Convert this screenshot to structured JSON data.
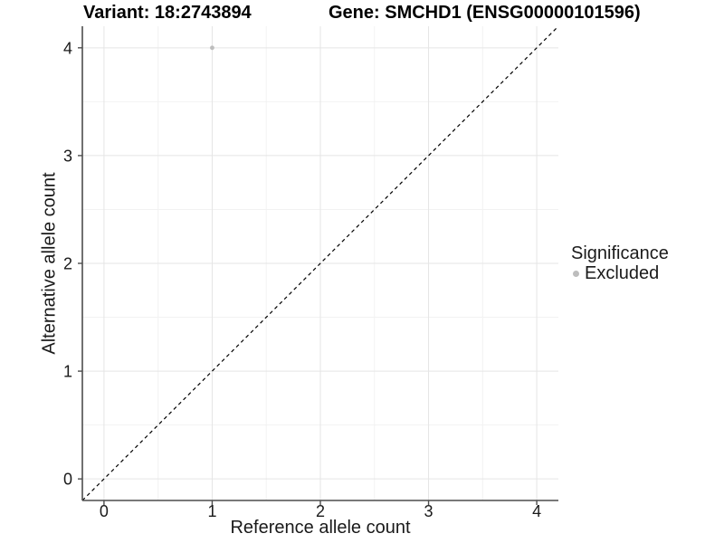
{
  "chart_data": {
    "type": "scatter",
    "title_left": "Variant: 18:2743894",
    "title_right": "Gene: SMCHD1 (ENSG00000101596)",
    "xlabel": "Reference allele count",
    "ylabel": "Alternative allele count",
    "xlim": [
      -0.2,
      4.2
    ],
    "ylim": [
      -0.2,
      4.2
    ],
    "x_ticks": [
      0,
      1,
      2,
      3,
      4
    ],
    "y_ticks": [
      0,
      1,
      2,
      3,
      4
    ],
    "x_minor_ticks": [
      0.5,
      1.5,
      2.5,
      3.5
    ],
    "y_minor_ticks": [
      0.5,
      1.5,
      2.5,
      3.5
    ],
    "grid": true,
    "legend_position": "right",
    "reference_line": {
      "kind": "identity",
      "slope": 1,
      "intercept": 0,
      "style": "dashed",
      "color": "#000000"
    },
    "series": [
      {
        "name": "Excluded",
        "color": "#bdbdbd",
        "points": [
          {
            "x": 1,
            "y": 4
          }
        ]
      }
    ],
    "legend": {
      "title": "Significance",
      "items": [
        {
          "label": "Excluded",
          "color": "#bdbdbd"
        }
      ]
    },
    "colors": {
      "background": "#ffffff",
      "grid_major": "#e5e5e5",
      "grid_minor": "#f2f2f2",
      "axis_line": "#4d4d4d",
      "tick_mark": "#4d4d4d",
      "tick_text": "#1a1a1a",
      "point": "#bdbdbd"
    }
  }
}
